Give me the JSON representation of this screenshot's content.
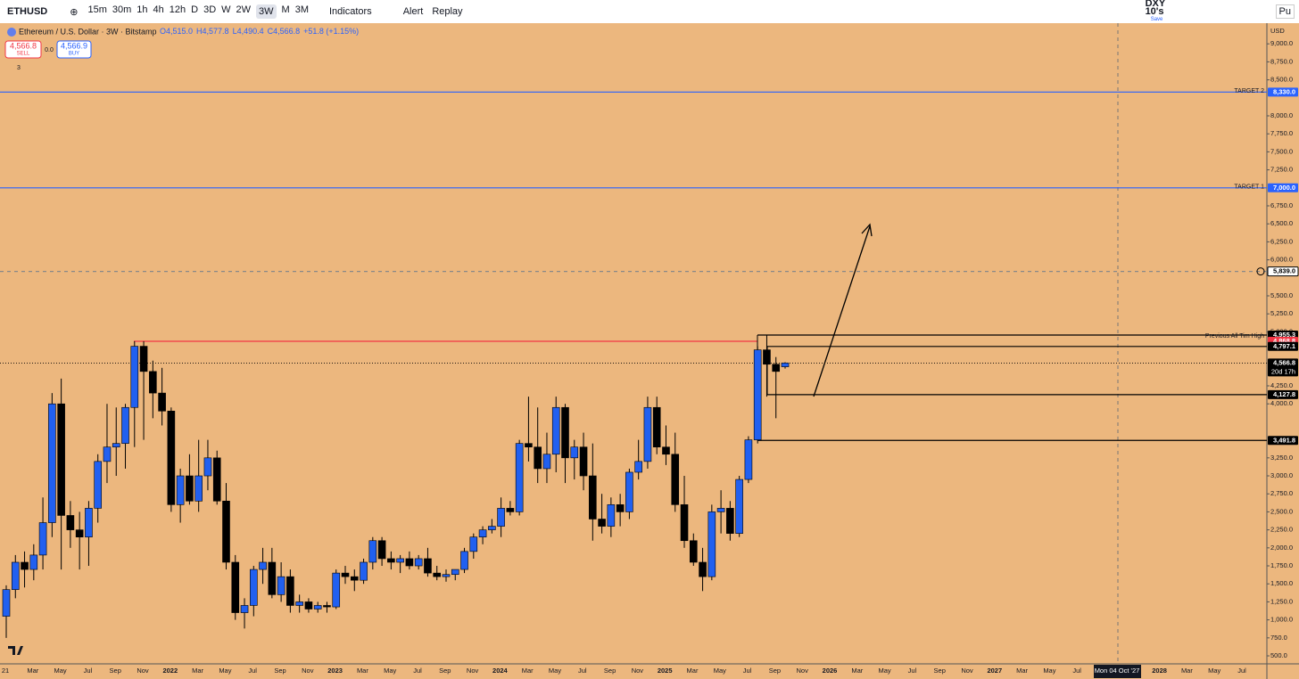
{
  "toolbar": {
    "symbol": "ETHUSD",
    "intervals": [
      "15m",
      "30m",
      "1h",
      "4h",
      "12h",
      "D",
      "3D",
      "W",
      "2W",
      "3W",
      "M",
      "3M"
    ],
    "active_interval": "3W",
    "indicators": "Indicators",
    "alert": "Alert",
    "replay": "Replay",
    "layout_name": "DXY 10's",
    "layout_status": "Save",
    "publish": "Pu"
  },
  "legend": {
    "title": "Ethereum / U.S. Dollar · 3W · Bitstamp",
    "open": "O4,515.0",
    "high": "H4,577.8",
    "low": "L4,490.4",
    "close": "C4,566.8",
    "change": "+51.8 (+1.15%)",
    "sell_price": "4,566.8",
    "sell": "SELL",
    "spread": "0.0",
    "buy_price": "4,566.9",
    "buy": "BUY",
    "indicator_count": "3"
  },
  "currency": "USD",
  "chart_data": {
    "type": "candlestick",
    "background": "#ecb77e",
    "up_color": "#2160f0",
    "down_color": "#000000",
    "ohlc": [
      [
        1050,
        1480,
        750,
        1420
      ],
      [
        1420,
        1900,
        1300,
        1800
      ],
      [
        1800,
        1950,
        1450,
        1700
      ],
      [
        1700,
        2050,
        1550,
        1900
      ],
      [
        1900,
        2700,
        1700,
        2350
      ],
      [
        2350,
        4150,
        2150,
        4000
      ],
      [
        4000,
        4350,
        1700,
        2450
      ],
      [
        2450,
        2650,
        2000,
        2250
      ],
      [
        2250,
        2500,
        1700,
        2150
      ],
      [
        2150,
        2650,
        1750,
        2550
      ],
      [
        2550,
        3300,
        2350,
        3200
      ],
      [
        3200,
        4000,
        2900,
        3400
      ],
      [
        3400,
        3950,
        3000,
        3450
      ],
      [
        3450,
        4000,
        3100,
        3950
      ],
      [
        3950,
        4870,
        3400,
        4800
      ],
      [
        4800,
        4870,
        3500,
        4450
      ],
      [
        4450,
        4600,
        3800,
        4150
      ],
      [
        4150,
        4500,
        3700,
        3900
      ],
      [
        3900,
        3950,
        2500,
        2600
      ],
      [
        2600,
        3100,
        2350,
        3000
      ],
      [
        3000,
        3300,
        2600,
        2650
      ],
      [
        2650,
        3500,
        2500,
        3000
      ],
      [
        3000,
        3500,
        2800,
        3250
      ],
      [
        3250,
        3350,
        2600,
        2650
      ],
      [
        2650,
        2900,
        1700,
        1800
      ],
      [
        1800,
        1900,
        1000,
        1100
      ],
      [
        1100,
        1300,
        880,
        1200
      ],
      [
        1200,
        1750,
        1050,
        1700
      ],
      [
        1700,
        2000,
        1500,
        1800
      ],
      [
        1800,
        2000,
        1300,
        1350
      ],
      [
        1350,
        1800,
        1250,
        1600
      ],
      [
        1600,
        1700,
        1100,
        1200
      ],
      [
        1200,
        1350,
        1100,
        1250
      ],
      [
        1250,
        1300,
        1100,
        1150
      ],
      [
        1150,
        1250,
        1100,
        1200
      ],
      [
        1200,
        1250,
        1100,
        1180
      ],
      [
        1180,
        1700,
        1150,
        1650
      ],
      [
        1650,
        1750,
        1500,
        1600
      ],
      [
        1600,
        1700,
        1400,
        1550
      ],
      [
        1550,
        1850,
        1500,
        1800
      ],
      [
        1800,
        2150,
        1700,
        2100
      ],
      [
        2100,
        2150,
        1750,
        1850
      ],
      [
        1850,
        1950,
        1700,
        1800
      ],
      [
        1800,
        1900,
        1650,
        1850
      ],
      [
        1850,
        1950,
        1700,
        1750
      ],
      [
        1750,
        1900,
        1700,
        1850
      ],
      [
        1850,
        2000,
        1600,
        1650
      ],
      [
        1650,
        1750,
        1550,
        1600
      ],
      [
        1600,
        1700,
        1530,
        1630
      ],
      [
        1630,
        1700,
        1550,
        1700
      ],
      [
        1700,
        2000,
        1650,
        1950
      ],
      [
        1950,
        2200,
        1850,
        2150
      ],
      [
        2150,
        2300,
        2050,
        2250
      ],
      [
        2250,
        2400,
        2200,
        2300
      ],
      [
        2300,
        2700,
        2150,
        2550
      ],
      [
        2550,
        2650,
        2450,
        2500
      ],
      [
        2500,
        3500,
        2450,
        3450
      ],
      [
        3450,
        4100,
        3200,
        3400
      ],
      [
        3400,
        3950,
        2900,
        3100
      ],
      [
        3100,
        3600,
        2900,
        3300
      ],
      [
        3300,
        4100,
        3050,
        3950
      ],
      [
        3950,
        4000,
        2900,
        3250
      ],
      [
        3250,
        3500,
        2950,
        3400
      ],
      [
        3400,
        3600,
        2800,
        3000
      ],
      [
        3000,
        3450,
        2100,
        2400
      ],
      [
        2400,
        2750,
        2200,
        2300
      ],
      [
        2300,
        2700,
        2150,
        2600
      ],
      [
        2600,
        2750,
        2300,
        2500
      ],
      [
        2500,
        3100,
        2400,
        3050
      ],
      [
        3050,
        3500,
        2950,
        3200
      ],
      [
        3200,
        4100,
        3100,
        3950
      ],
      [
        3950,
        4100,
        3300,
        3400
      ],
      [
        3400,
        3700,
        3150,
        3300
      ],
      [
        3300,
        3600,
        2500,
        2600
      ],
      [
        2600,
        3000,
        2000,
        2100
      ],
      [
        2100,
        2200,
        1750,
        1800
      ],
      [
        1800,
        2000,
        1400,
        1600
      ],
      [
        1600,
        2600,
        1550,
        2500
      ],
      [
        2500,
        2800,
        2200,
        2550
      ],
      [
        2550,
        2650,
        2100,
        2200
      ],
      [
        2200,
        3000,
        2150,
        2950
      ],
      [
        2950,
        3550,
        2900,
        3500
      ],
      [
        3500,
        4800,
        3450,
        4750
      ],
      [
        4750,
        4955,
        4100,
        4550
      ],
      [
        4550,
        4650,
        3800,
        4450
      ],
      [
        4515,
        4578,
        4490,
        4567
      ]
    ],
    "ylim": [
      389,
      9287
    ],
    "yticks": [
      {
        "value": 9000,
        "label": "9,000.0"
      },
      {
        "value": 8750,
        "label": "8,750.0"
      },
      {
        "value": 8500,
        "label": "8,500.0"
      },
      {
        "value": 8000,
        "label": "8,000.0"
      },
      {
        "value": 7750,
        "label": "7,750.0"
      },
      {
        "value": 7500,
        "label": "7,500.0"
      },
      {
        "value": 7250,
        "label": "7,250.0"
      },
      {
        "value": 6750,
        "label": "6,750.0"
      },
      {
        "value": 6500,
        "label": "6,500.0"
      },
      {
        "value": 6250,
        "label": "6,250.0"
      },
      {
        "value": 6000,
        "label": "6,000.0"
      },
      {
        "value": 5500,
        "label": "5,500.0"
      },
      {
        "value": 5250,
        "label": "5,250.0"
      },
      {
        "value": 5000,
        "label": "5,000.0"
      },
      {
        "value": 4250,
        "label": "4,250.0"
      },
      {
        "value": 4000,
        "label": "4,000.0"
      },
      {
        "value": 3250,
        "label": "3,250.0"
      },
      {
        "value": 3000,
        "label": "3,000.0"
      },
      {
        "value": 2750,
        "label": "2,750.0"
      },
      {
        "value": 2500,
        "label": "2,500.0"
      },
      {
        "value": 2250,
        "label": "2,250.0"
      },
      {
        "value": 2000,
        "label": "2,000.0"
      },
      {
        "value": 1750,
        "label": "1,750.0"
      },
      {
        "value": 1500,
        "label": "1,500.0"
      },
      {
        "value": 1250,
        "label": "1,250.0"
      },
      {
        "value": 1000,
        "label": "1,000.0"
      },
      {
        "value": 750,
        "label": "750.0"
      },
      {
        "value": 500,
        "label": "500.0"
      }
    ],
    "x_labels": [
      "21",
      "Mar",
      "May",
      "Jul",
      "Sep",
      "Nov",
      "2022",
      "Mar",
      "May",
      "Jul",
      "Sep",
      "Nov",
      "2023",
      "Mar",
      "May",
      "Jul",
      "Sep",
      "Nov",
      "2024",
      "Mar",
      "May",
      "Jul",
      "Sep",
      "Nov",
      "2025",
      "Mar",
      "May",
      "Jul",
      "Sep",
      "Nov",
      "2026",
      "Mar",
      "May",
      "Jul",
      "Sep",
      "Nov",
      "2027",
      "Mar",
      "May",
      "Jul",
      null,
      null,
      "2028",
      "Mar",
      "May",
      "Jul"
    ],
    "crosshair_label": "Mon 04 Oct '27",
    "levels": [
      {
        "value": 8330,
        "label": "8,330.0",
        "text": "TARGET 2",
        "color": "#2962ff"
      },
      {
        "value": 7000,
        "label": "7,000.0",
        "text": "TARGET 1",
        "color": "#2962ff"
      },
      {
        "value": 5839,
        "label": "5,839.0",
        "color": "#888888"
      },
      {
        "value": 4955.3,
        "label": "4,955.3",
        "text": "Previous All Tim High",
        "color": "#000000"
      },
      {
        "value": 4868.8,
        "label": "4,868.8",
        "color": "#f23645"
      },
      {
        "value": 4797.1,
        "label": "4,797.1",
        "color": "#000000"
      },
      {
        "value": 4566.8,
        "label": "4,566.8",
        "countdown": "20d 17h",
        "color": "#000000"
      },
      {
        "value": 4127.8,
        "label": "4,127.8",
        "color": "#000000"
      },
      {
        "value": 3491.8,
        "label": "3,491.8",
        "color": "#000000"
      }
    ]
  }
}
